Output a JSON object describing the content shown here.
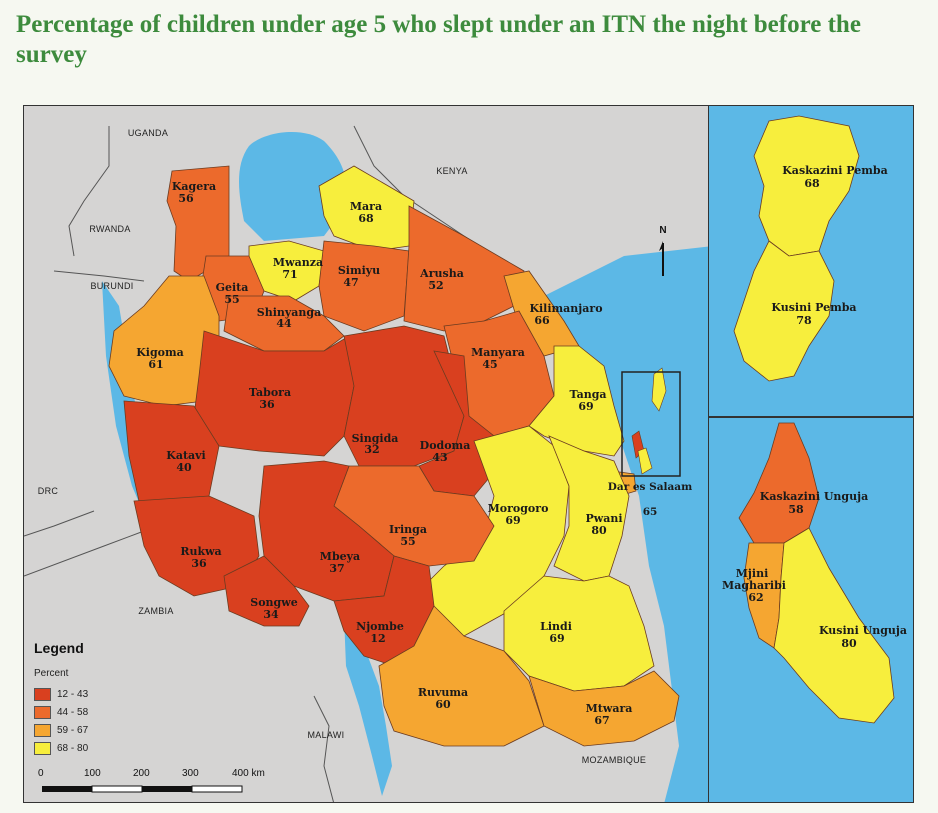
{
  "title": "Percentage of children under age 5 who slept under an ITN the night before the survey",
  "legend": {
    "title": "Legend",
    "subtitle": "Percent",
    "classes": [
      {
        "range": "12 - 43",
        "color": "#d9401f"
      },
      {
        "range": "44 - 58",
        "color": "#ec6a2c"
      },
      {
        "range": "59 - 67",
        "color": "#f5a631"
      },
      {
        "range": "68 - 80",
        "color": "#f7ee3d"
      }
    ]
  },
  "scale_bar": {
    "labels": [
      "0",
      "100",
      "200",
      "300",
      "400 km"
    ]
  },
  "north_arrow": "N",
  "colors": {
    "water": "#5cb8e6",
    "land_outside": "#d5d4d3",
    "title": "#3d8b3d"
  },
  "countries": [
    "UGANDA",
    "KENYA",
    "RWANDA",
    "BURUNDI",
    "DRC",
    "ZAMBIA",
    "MALAWI",
    "MOZAMBIQUE"
  ],
  "regions": [
    {
      "name": "Kagera",
      "value": "56",
      "class": 1
    },
    {
      "name": "Mara",
      "value": "68",
      "class": 3
    },
    {
      "name": "Mwanza",
      "value": "71",
      "class": 3
    },
    {
      "name": "Simiyu",
      "value": "47",
      "class": 1
    },
    {
      "name": "Arusha",
      "value": "52",
      "class": 1
    },
    {
      "name": "Geita",
      "value": "55",
      "class": 1
    },
    {
      "name": "Shinyanga",
      "value": "44",
      "class": 1
    },
    {
      "name": "Kilimanjaro",
      "value": "66",
      "class": 2
    },
    {
      "name": "Kigoma",
      "value": "61",
      "class": 2
    },
    {
      "name": "Manyara",
      "value": "45",
      "class": 1
    },
    {
      "name": "Tabora",
      "value": "36",
      "class": 0
    },
    {
      "name": "Tanga",
      "value": "69",
      "class": 3
    },
    {
      "name": "Singida",
      "value": "32",
      "class": 0
    },
    {
      "name": "Dodoma",
      "value": "43",
      "class": 0
    },
    {
      "name": "Katavi",
      "value": "40",
      "class": 0
    },
    {
      "name": "Dar es Salaam",
      "value": "65",
      "class": 2
    },
    {
      "name": "Morogoro",
      "value": "69",
      "class": 3
    },
    {
      "name": "Pwani",
      "value": "80",
      "class": 3
    },
    {
      "name": "Iringa",
      "value": "55",
      "class": 1
    },
    {
      "name": "Rukwa",
      "value": "36",
      "class": 0
    },
    {
      "name": "Mbeya",
      "value": "37",
      "class": 0
    },
    {
      "name": "Songwe",
      "value": "34",
      "class": 0
    },
    {
      "name": "Njombe",
      "value": "12",
      "class": 0
    },
    {
      "name": "Lindi",
      "value": "69",
      "class": 3
    },
    {
      "name": "Ruvuma",
      "value": "60",
      "class": 2
    },
    {
      "name": "Mtwara",
      "value": "67",
      "class": 2
    },
    {
      "name": "Kaskazini Pemba",
      "value": "68",
      "class": 3
    },
    {
      "name": "Kusini Pemba",
      "value": "78",
      "class": 3
    },
    {
      "name": "Kaskazini Unguja",
      "value": "58",
      "class": 1
    },
    {
      "name": "Mjini Magharibi",
      "value": "62",
      "class": 2
    },
    {
      "name": "Kusini Unguja",
      "value": "80",
      "class": 3
    }
  ]
}
